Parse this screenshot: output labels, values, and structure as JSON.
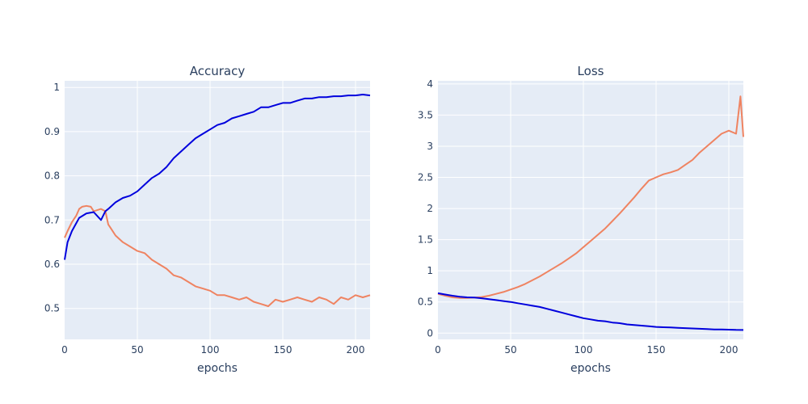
{
  "chart_data": [
    {
      "type": "line",
      "title": "Accuracy",
      "xlabel": "epochs",
      "ylabel": "",
      "xlim": [
        0,
        210
      ],
      "ylim": [
        0.43,
        1.015
      ],
      "xticks": [
        0,
        50,
        100,
        150,
        200
      ],
      "xtick_labels": [
        "0",
        "50",
        "100",
        "150",
        "200"
      ],
      "yticks": [
        0.5,
        0.6,
        0.7,
        0.8,
        0.9,
        1
      ],
      "ytick_labels": [
        "0.5",
        "0.6",
        "0.7",
        "0.8",
        "0.9",
        "1"
      ],
      "grid": true,
      "legend": "none",
      "series": [
        {
          "color": "#0000dd",
          "x": [
            0,
            2,
            5,
            10,
            15,
            20,
            25,
            28,
            30,
            35,
            40,
            45,
            50,
            55,
            60,
            65,
            70,
            75,
            80,
            85,
            90,
            95,
            100,
            105,
            110,
            115,
            120,
            125,
            130,
            135,
            140,
            145,
            150,
            155,
            160,
            165,
            170,
            175,
            180,
            185,
            190,
            195,
            200,
            205,
            210
          ],
          "y": [
            0.61,
            0.65,
            0.675,
            0.705,
            0.715,
            0.718,
            0.7,
            0.72,
            0.725,
            0.74,
            0.75,
            0.755,
            0.765,
            0.78,
            0.795,
            0.805,
            0.82,
            0.84,
            0.855,
            0.87,
            0.885,
            0.895,
            0.905,
            0.915,
            0.92,
            0.93,
            0.935,
            0.94,
            0.945,
            0.955,
            0.955,
            0.96,
            0.965,
            0.965,
            0.97,
            0.975,
            0.975,
            0.978,
            0.978,
            0.98,
            0.98,
            0.982,
            0.982,
            0.984,
            0.982
          ]
        },
        {
          "color": "#ef8361",
          "x": [
            0,
            2,
            5,
            8,
            10,
            12,
            15,
            18,
            20,
            25,
            28,
            30,
            32,
            35,
            40,
            45,
            50,
            55,
            60,
            65,
            70,
            75,
            80,
            85,
            90,
            95,
            100,
            105,
            110,
            115,
            120,
            125,
            130,
            135,
            140,
            145,
            150,
            155,
            160,
            165,
            170,
            175,
            180,
            185,
            190,
            195,
            200,
            205,
            210
          ],
          "y": [
            0.66,
            0.675,
            0.695,
            0.71,
            0.725,
            0.73,
            0.732,
            0.73,
            0.72,
            0.725,
            0.72,
            0.69,
            0.68,
            0.665,
            0.65,
            0.64,
            0.63,
            0.625,
            0.61,
            0.6,
            0.59,
            0.575,
            0.57,
            0.56,
            0.55,
            0.545,
            0.54,
            0.53,
            0.53,
            0.525,
            0.52,
            0.525,
            0.515,
            0.51,
            0.505,
            0.52,
            0.515,
            0.52,
            0.525,
            0.52,
            0.515,
            0.525,
            0.52,
            0.51,
            0.525,
            0.52,
            0.53,
            0.525,
            0.53
          ]
        }
      ]
    },
    {
      "type": "line",
      "title": "Loss",
      "xlabel": "epochs",
      "ylabel": "",
      "xlim": [
        0,
        210
      ],
      "ylim": [
        -0.1,
        4.05
      ],
      "xticks": [
        0,
        50,
        100,
        150,
        200
      ],
      "xtick_labels": [
        "0",
        "50",
        "100",
        "150",
        "200"
      ],
      "yticks": [
        0,
        0.5,
        1,
        1.5,
        2,
        2.5,
        3,
        3.5,
        4
      ],
      "ytick_labels": [
        "0",
        "0.5",
        "1",
        "1.5",
        "2",
        "2.5",
        "3",
        "3.5",
        "4"
      ],
      "grid": true,
      "legend": "none",
      "series": [
        {
          "color": "#0000dd",
          "x": [
            0,
            5,
            10,
            15,
            20,
            25,
            30,
            35,
            40,
            45,
            50,
            55,
            60,
            65,
            70,
            75,
            80,
            85,
            90,
            95,
            100,
            105,
            110,
            115,
            120,
            125,
            130,
            135,
            140,
            145,
            150,
            155,
            160,
            165,
            170,
            175,
            180,
            185,
            190,
            195,
            200,
            205,
            210
          ],
          "y": [
            0.64,
            0.62,
            0.6,
            0.585,
            0.575,
            0.57,
            0.56,
            0.545,
            0.53,
            0.515,
            0.5,
            0.48,
            0.46,
            0.44,
            0.42,
            0.39,
            0.36,
            0.33,
            0.3,
            0.27,
            0.24,
            0.22,
            0.2,
            0.19,
            0.17,
            0.16,
            0.14,
            0.13,
            0.12,
            0.11,
            0.1,
            0.095,
            0.09,
            0.085,
            0.08,
            0.075,
            0.07,
            0.065,
            0.06,
            0.058,
            0.055,
            0.052,
            0.05
          ]
        },
        {
          "color": "#ef8361",
          "x": [
            0,
            5,
            10,
            15,
            20,
            25,
            30,
            35,
            40,
            45,
            50,
            55,
            60,
            65,
            70,
            75,
            80,
            85,
            90,
            95,
            100,
            105,
            110,
            115,
            120,
            125,
            130,
            135,
            140,
            145,
            150,
            155,
            160,
            165,
            170,
            175,
            180,
            185,
            190,
            195,
            200,
            205,
            208,
            210
          ],
          "y": [
            0.63,
            0.6,
            0.575,
            0.565,
            0.565,
            0.57,
            0.58,
            0.6,
            0.63,
            0.66,
            0.7,
            0.74,
            0.79,
            0.85,
            0.91,
            0.98,
            1.05,
            1.12,
            1.2,
            1.28,
            1.38,
            1.48,
            1.58,
            1.68,
            1.8,
            1.92,
            2.05,
            2.18,
            2.32,
            2.45,
            2.5,
            2.55,
            2.58,
            2.62,
            2.7,
            2.78,
            2.9,
            3.0,
            3.1,
            3.2,
            3.25,
            3.2,
            3.8,
            3.15
          ]
        }
      ]
    }
  ]
}
